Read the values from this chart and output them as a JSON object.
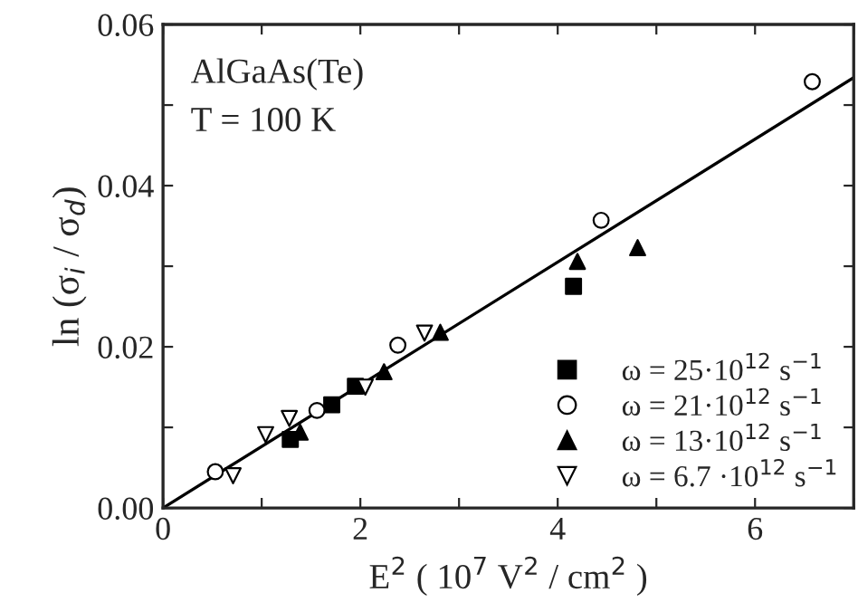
{
  "chart_data": {
    "type": "scatter",
    "xlabel": "E$^{2}$ ( 10$^{7}$ V$^{2}$ / cm$^{2}$ )",
    "ylabel": "ln (σ$_{i}$ / σ$_{d}$)",
    "annotations": [
      "AlGaAs(Te)",
      "T = 100 K"
    ],
    "xlim": [
      0,
      7
    ],
    "ylim": [
      0,
      0.06
    ],
    "xticks": [
      0,
      {
        "value": 1,
        "label": null
      },
      2,
      {
        "value": 3,
        "label": null
      },
      4,
      {
        "value": 5,
        "label": null
      },
      6,
      {
        "value": 7,
        "label": null
      }
    ],
    "yticks": [
      {
        "value": 0,
        "label": "0.00"
      },
      {
        "value": 0.01,
        "label": null
      },
      {
        "value": 0.02,
        "label": "0.02"
      },
      {
        "value": 0.03,
        "label": null
      },
      {
        "value": 0.04,
        "label": "0.04"
      },
      {
        "value": 0.05,
        "label": null
      },
      {
        "value": 0.06,
        "label": "0.06"
      }
    ],
    "grid": false,
    "legend": "bottom right",
    "series": [
      {
        "name": "ω = 25·10$^{12}$ s$^{−1}$",
        "color": "#000000",
        "marker": "square",
        "x": [
          1.29,
          1.71,
          1.95,
          4.16
        ],
        "values": [
          0.0085,
          0.0128,
          0.0151,
          0.0275
        ]
      },
      {
        "name": "ω = 21·10$^{12}$ s$^{−1}$",
        "color": "#ffffff",
        "marker": "circle",
        "x": [
          0.53,
          1.56,
          2.38,
          4.44,
          6.58
        ],
        "values": [
          0.0045,
          0.0121,
          0.0202,
          0.0357,
          0.0529
        ]
      },
      {
        "name": "ω = 13·10$^{12}$ s$^{−1}$",
        "color": "#000000",
        "marker": "triangle",
        "x": [
          1.39,
          2.24,
          2.81,
          4.2,
          4.81
        ],
        "values": [
          0.0094,
          0.0169,
          0.0218,
          0.0306,
          0.0323
        ]
      },
      {
        "name": "ω = 6.7 ·10$^{12}$ s$^{−1}$",
        "color": "#ffffff",
        "marker": "triangle_down",
        "x": [
          0.71,
          1.04,
          1.28,
          2.05,
          2.65
        ],
        "values": [
          0.004,
          0.0091,
          0.0111,
          0.015,
          0.0217
        ]
      },
      {
        "type": "line",
        "color": "#000000",
        "line_style": "solid",
        "x": [
          0,
          7
        ],
        "values": [
          0,
          0.0534
        ]
      }
    ]
  }
}
